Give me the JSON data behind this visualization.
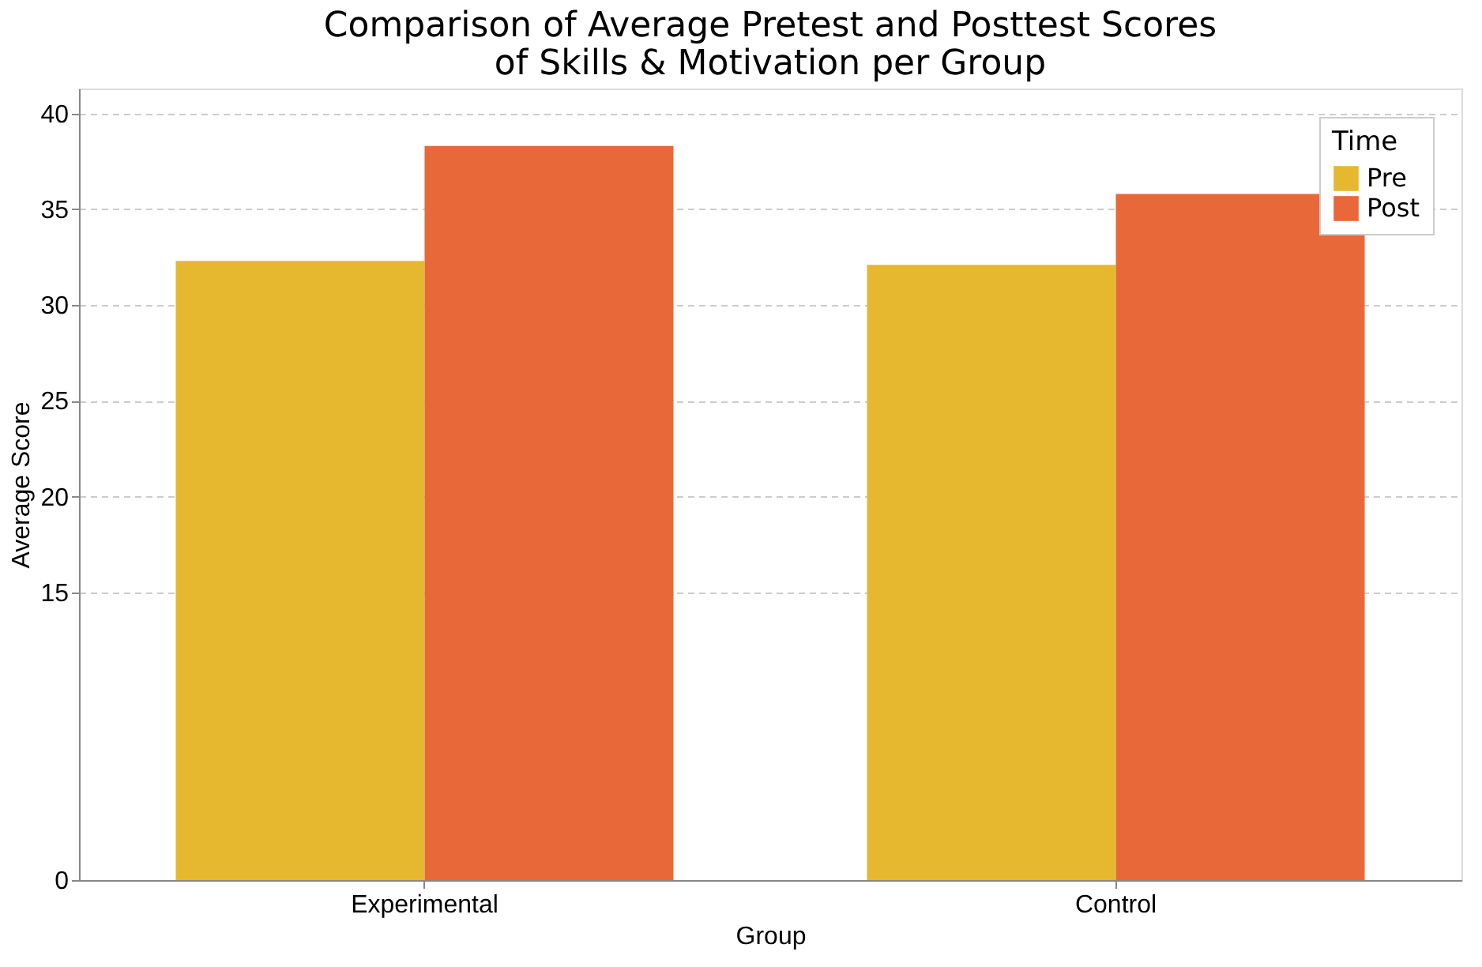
{
  "chart_data": {
    "type": "bar",
    "title": "Comparison of Average Pretest and Posttest Scores\nof Skills & Motivation per Group",
    "xlabel": "Group",
    "ylabel": "Average Score",
    "legend_title": "Time",
    "categories": [
      "Experimental",
      "Control"
    ],
    "series": [
      {
        "name": "Pre",
        "color": "#e6b830",
        "values": [
          32.3,
          32.1
        ]
      },
      {
        "name": "Post",
        "color": "#e8683a",
        "values": [
          38.3,
          35.8
        ]
      }
    ],
    "ylim": [
      0,
      41.3
    ],
    "yticks": [
      0,
      15,
      20,
      25,
      30,
      35,
      40
    ],
    "grid": "y",
    "legend": "top right"
  }
}
